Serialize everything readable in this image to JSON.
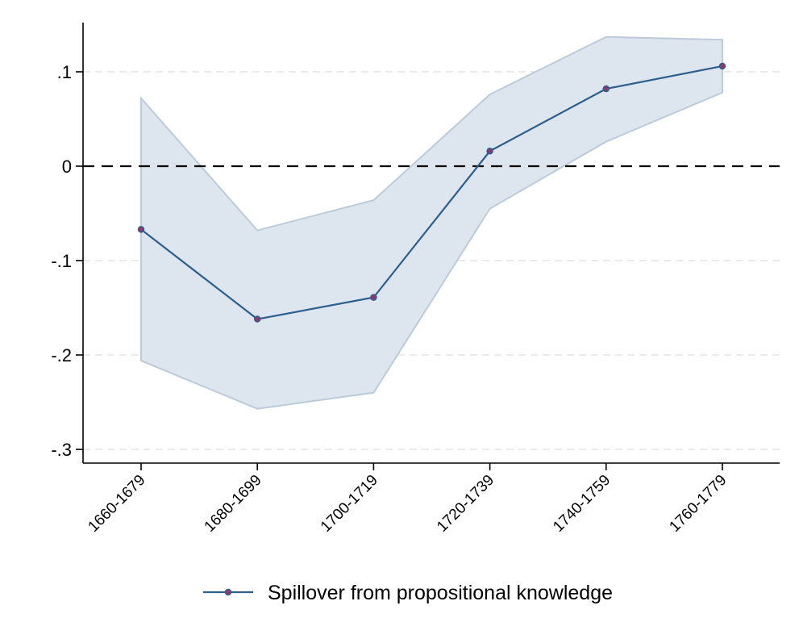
{
  "chart_data": {
    "type": "line",
    "categories": [
      "1660-1679",
      "1680-1699",
      "1700-1719",
      "1720-1739",
      "1740-1759",
      "1760-1779"
    ],
    "series": [
      {
        "name": "Spillover from propositional knowledge",
        "values": [
          -0.067,
          -0.162,
          -0.139,
          0.016,
          0.082,
          0.106
        ],
        "ci_upper": [
          0.072,
          -0.068,
          -0.036,
          0.076,
          0.137,
          0.134
        ],
        "ci_lower": [
          -0.206,
          -0.257,
          -0.24,
          -0.045,
          0.026,
          0.078
        ]
      }
    ],
    "yticks": [
      0.1,
      0,
      -0.1,
      -0.2,
      -0.3
    ],
    "ytick_labels": [
      ".1",
      "0",
      "-.1",
      "-.2",
      "-.3"
    ],
    "ylim": [
      -0.315,
      0.152
    ],
    "reference_line": 0,
    "grid": true,
    "legend_position": "bottom",
    "colors": {
      "line": "#2c5f8e",
      "marker_fill": "#8a3a6b",
      "ci_fill": "#dde5ee",
      "ci_edge": "#bccbd9",
      "grid": "#e4e4e4",
      "axis": "#000000",
      "reference": "#000000"
    }
  }
}
